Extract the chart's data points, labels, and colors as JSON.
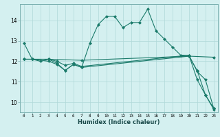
{
  "xlabel": "Humidex (Indice chaleur)",
  "background_color": "#d4f0f0",
  "grid_color": "#b0d8d8",
  "line_color": "#1a7a6a",
  "x_ticks": [
    0,
    1,
    2,
    3,
    4,
    5,
    6,
    7,
    8,
    9,
    10,
    11,
    12,
    13,
    14,
    15,
    16,
    17,
    18,
    19,
    20,
    21,
    22,
    23
  ],
  "y_ticks": [
    10,
    11,
    12,
    13,
    14
  ],
  "ylim": [
    9.5,
    14.8
  ],
  "xlim": [
    -0.5,
    23.5
  ],
  "series": [
    {
      "x": [
        0,
        1,
        2,
        3,
        4,
        5,
        6,
        7,
        8,
        9,
        10,
        11,
        12,
        13,
        14,
        15,
        16,
        17,
        18,
        19,
        20,
        21,
        22,
        23
      ],
      "y": [
        12.9,
        12.1,
        12.0,
        12.1,
        11.9,
        11.55,
        11.85,
        11.7,
        12.9,
        13.8,
        14.2,
        14.2,
        13.65,
        13.9,
        13.9,
        14.55,
        13.5,
        13.1,
        12.7,
        12.3,
        12.3,
        11.1,
        10.35,
        9.7
      ]
    },
    {
      "x": [
        0,
        1,
        3,
        4,
        5,
        6,
        7,
        20,
        21,
        22,
        23
      ],
      "y": [
        12.1,
        12.1,
        12.1,
        12.0,
        11.8,
        11.9,
        11.75,
        12.3,
        11.5,
        11.1,
        9.7
      ]
    },
    {
      "x": [
        0,
        1,
        3,
        4,
        5,
        6,
        7,
        20,
        21,
        22,
        23
      ],
      "y": [
        12.1,
        12.1,
        12.0,
        11.85,
        11.55,
        11.85,
        11.7,
        12.25,
        11.55,
        10.35,
        9.65
      ]
    },
    {
      "x": [
        0,
        1,
        3,
        7,
        20,
        23
      ],
      "y": [
        12.1,
        12.1,
        12.1,
        12.05,
        12.25,
        12.2
      ]
    }
  ]
}
